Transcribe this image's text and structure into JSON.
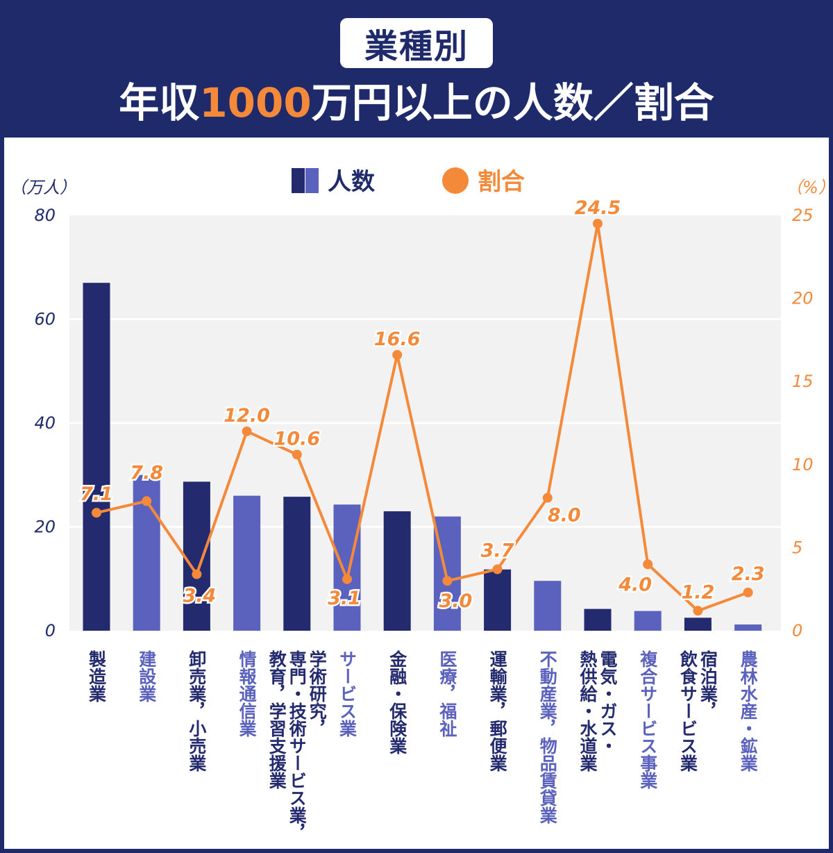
{
  "header": {
    "badge": "業種別",
    "title_pre": "年収",
    "title_highlight": "1000",
    "title_post": "万円以上の人数／割合"
  },
  "colors": {
    "navy": "#1f2a6b",
    "bar_dark": "#232a6e",
    "bar_light": "#5b62bd",
    "orange": "#f5893a",
    "plot_bg": "#f2f2f2"
  },
  "legend": {
    "count_label": "人数",
    "ratio_label": "割合"
  },
  "chart_data": {
    "type": "bar+line",
    "categories": [
      "製造業",
      "建設業",
      "卸売業，小売業",
      "情報通信業",
      "学術研究，専門・技術サービス業，教育，学習支援業",
      "サービス業",
      "金融・保険業",
      "医療，福祉",
      "運輸業，郵便業",
      "不動産業，物品賃貸業",
      "電気・ガス・熱供給・水道業",
      "複合サービス事業",
      "宿泊業，飲食サービス業",
      "農林水産・鉱業"
    ],
    "category_lines": [
      [
        "製造業"
      ],
      [
        "建設業"
      ],
      [
        "卸売業，小売業"
      ],
      [
        "情報通信業"
      ],
      [
        "学術研究，",
        "専門・技術サービス業，",
        "教育，学習支援業"
      ],
      [
        "サービス業"
      ],
      [
        "金融・保険業"
      ],
      [
        "医療，福祉"
      ],
      [
        "運輸業，郵便業"
      ],
      [
        "不動産業，物品賃貸業"
      ],
      [
        "電気・ガス・",
        "熱供給・水道業"
      ],
      [
        "複合サービス事業"
      ],
      [
        "宿泊業，",
        "飲食サービス業"
      ],
      [
        "農林水産・鉱業"
      ]
    ],
    "series": [
      {
        "name": "人数",
        "type": "bar",
        "axis": "left",
        "values": [
          67,
          30,
          28.7,
          26,
          25.8,
          24.3,
          23,
          22,
          11.8,
          9.6,
          4.2,
          3.8,
          2.5,
          1.2
        ]
      },
      {
        "name": "割合",
        "type": "line",
        "axis": "right",
        "values": [
          7.1,
          7.8,
          3.4,
          12.0,
          10.6,
          3.1,
          16.6,
          3.0,
          3.7,
          8.0,
          24.5,
          4.0,
          1.2,
          2.3
        ]
      }
    ],
    "ratio_labels": [
      "7.1",
      "7.8",
      "3.4",
      "12.0",
      "10.6",
      "3.1",
      "16.6",
      "3.0",
      "3.7",
      "8.0",
      "24.5",
      "4.0",
      "1.2",
      "2.3"
    ],
    "y_left": {
      "unit_label": "（万人）",
      "ylim": [
        0,
        80
      ],
      "ticks": [
        "0",
        "20",
        "40",
        "60",
        "80"
      ]
    },
    "y_right": {
      "unit_label": "（%）",
      "ylim": [
        0,
        25
      ],
      "ticks": [
        "0",
        "5",
        "10",
        "15",
        "20",
        "25"
      ]
    },
    "grid": true,
    "legend_position": "top-center"
  }
}
